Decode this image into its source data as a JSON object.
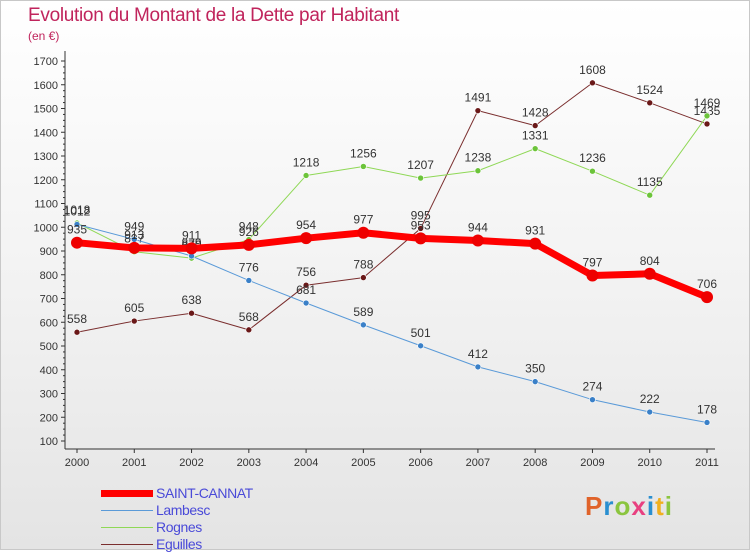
{
  "title": "Evolution du Montant de la Dette par Habitant",
  "subtitle": "(en €)",
  "logo": {
    "text": "Proxiti",
    "letter_colors": [
      "#e0632a",
      "#2a8fd0",
      "#8bc53f",
      "#e84080",
      "#2a8fd0",
      "#f0b020",
      "#8bc53f"
    ]
  },
  "chart_data": {
    "type": "line",
    "x": [
      "2000",
      "2001",
      "2002",
      "2003",
      "2004",
      "2005",
      "2006",
      "2007",
      "2008",
      "2009",
      "2010",
      "2011"
    ],
    "ylim": [
      100,
      1700
    ],
    "yticks": [
      100,
      200,
      300,
      400,
      500,
      600,
      700,
      800,
      900,
      1000,
      1100,
      1200,
      1300,
      1400,
      1500,
      1600,
      1700
    ],
    "grid": false,
    "legend_position": "bottom-left",
    "series": [
      {
        "name": "Eguilles",
        "color": "#7a2e2e",
        "marker": "#6a1818",
        "width": 1,
        "values": [
          558,
          605,
          638,
          568,
          756,
          788,
          995,
          1491,
          1428,
          1608,
          1524,
          1435
        ],
        "labels": [
          "558",
          "605",
          "638",
          "568",
          "756",
          "788",
          "995",
          "1491",
          "1428",
          "1608",
          "1524",
          "1435"
        ]
      },
      {
        "name": "Rognes",
        "color": "#8fd856",
        "marker": "#6cc43a",
        "width": 1,
        "values": [
          1018,
          897,
          870,
          948,
          1218,
          1256,
          1207,
          1238,
          1331,
          1236,
          1135,
          1469
        ],
        "labels": [
          "1018",
          "897",
          "870",
          "948",
          "1218",
          "1256",
          "1207",
          "1238",
          "1331",
          "1236",
          "1135",
          "1469"
        ]
      },
      {
        "name": "Lambesc",
        "color": "#5a9ad8",
        "marker": "#3a80c8",
        "width": 1,
        "values": [
          1012,
          949,
          879,
          776,
          681,
          589,
          501,
          412,
          350,
          274,
          222,
          178
        ],
        "labels": [
          "1012",
          "949",
          "879",
          "776",
          "681",
          "589",
          "501",
          "412",
          "350",
          "274",
          "222",
          "178"
        ]
      },
      {
        "name": "SAINT-CANNAT",
        "color": "#ff0000",
        "marker": "#ee0000",
        "width": 7,
        "values": [
          935,
          913,
          911,
          926,
          954,
          977,
          953,
          944,
          931,
          797,
          804,
          706
        ],
        "labels": [
          "935",
          "913",
          "911",
          "926",
          "954",
          "977",
          "953",
          "944",
          "931",
          "797",
          "804",
          "706"
        ]
      }
    ]
  },
  "legend": [
    {
      "label": "SAINT-CANNAT",
      "color": "#ff0000",
      "width": 7
    },
    {
      "label": "Lambesc",
      "color": "#5a9ad8",
      "width": 1
    },
    {
      "label": "Rognes",
      "color": "#8fd856",
      "width": 1
    },
    {
      "label": "Eguilles",
      "color": "#7a2e2e",
      "width": 1
    }
  ]
}
